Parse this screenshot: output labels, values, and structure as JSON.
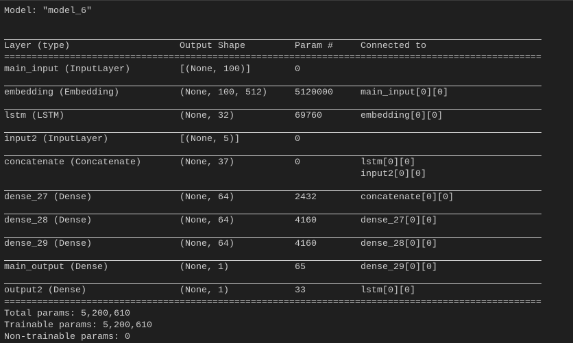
{
  "title": "Model: \"model_6\"",
  "headers": [
    "Layer (type)",
    "Output Shape",
    "Param #",
    "Connected to"
  ],
  "rows": [
    {
      "layer": "main_input (InputLayer)",
      "shape": "[(None, 100)]",
      "params": "0",
      "connected": []
    },
    {
      "layer": "embedding (Embedding)",
      "shape": "(None, 100, 512)",
      "params": "5120000",
      "connected": [
        "main_input[0][0]"
      ]
    },
    {
      "layer": "lstm (LSTM)",
      "shape": "(None, 32)",
      "params": "69760",
      "connected": [
        "embedding[0][0]"
      ]
    },
    {
      "layer": "input2 (InputLayer)",
      "shape": "[(None, 5)]",
      "params": "0",
      "connected": []
    },
    {
      "layer": "concatenate (Concatenate)",
      "shape": "(None, 37)",
      "params": "0",
      "connected": [
        "lstm[0][0]",
        "input2[0][0]"
      ]
    },
    {
      "layer": "dense_27 (Dense)",
      "shape": "(None, 64)",
      "params": "2432",
      "connected": [
        "concatenate[0][0]"
      ]
    },
    {
      "layer": "dense_28 (Dense)",
      "shape": "(None, 64)",
      "params": "4160",
      "connected": [
        "dense_27[0][0]"
      ]
    },
    {
      "layer": "dense_29 (Dense)",
      "shape": "(None, 64)",
      "params": "4160",
      "connected": [
        "dense_28[0][0]"
      ]
    },
    {
      "layer": "main_output (Dense)",
      "shape": "(None, 1)",
      "params": "65",
      "connected": [
        "dense_29[0][0]"
      ]
    },
    {
      "layer": "output2 (Dense)",
      "shape": "(None, 1)",
      "params": "33",
      "connected": [
        "lstm[0][0]"
      ]
    }
  ],
  "totals": {
    "total": "Total params: 5,200,610",
    "trainable": "Trainable params: 5,200,610",
    "non_trainable": "Non-trainable params: 0"
  }
}
